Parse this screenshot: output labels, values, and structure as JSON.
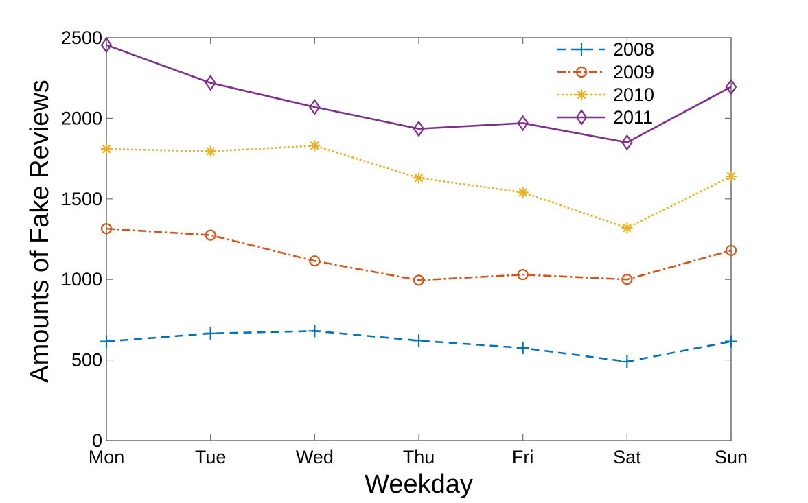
{
  "chart_data": {
    "type": "line",
    "title": "",
    "xlabel": "Weekday",
    "ylabel": "Amounts of Fake Reviews",
    "categories": [
      "Mon",
      "Tue",
      "Wed",
      "Thu",
      "Fri",
      "Sat",
      "Sun"
    ],
    "ylim": [
      0,
      2500
    ],
    "yticks": [
      0,
      500,
      1000,
      1500,
      2000,
      2500
    ],
    "grid": false,
    "legend_position": "top-right",
    "series": [
      {
        "name": "2008",
        "values": [
          615,
          665,
          680,
          620,
          575,
          490,
          615
        ],
        "color": "#0072BD",
        "line_style": "dashed",
        "marker": "plus"
      },
      {
        "name": "2009",
        "values": [
          1315,
          1275,
          1115,
          995,
          1030,
          1000,
          1180
        ],
        "color": "#D95319",
        "line_style": "dash-dot",
        "marker": "circle"
      },
      {
        "name": "2010",
        "values": [
          1810,
          1795,
          1830,
          1630,
          1540,
          1320,
          1640
        ],
        "color": "#EDB120",
        "line_style": "dotted",
        "marker": "asterisk"
      },
      {
        "name": "2011",
        "values": [
          2455,
          2220,
          2070,
          1935,
          1970,
          1850,
          2195
        ],
        "color": "#7E2F8E",
        "line_style": "solid",
        "marker": "diamond"
      }
    ]
  }
}
